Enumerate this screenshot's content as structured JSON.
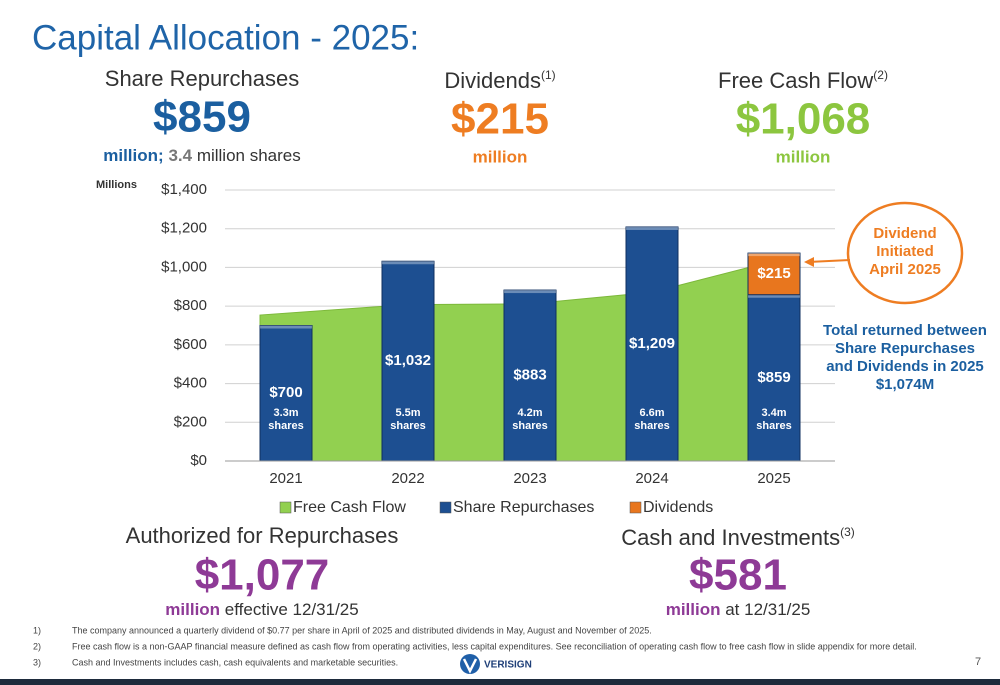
{
  "header": {
    "title": "Capital Allocation - 2025:"
  },
  "stats": {
    "repurchases": {
      "label": "Share Repurchases",
      "value": "$859",
      "unit": "million;",
      "shares": "3.4",
      "note": "million shares"
    },
    "dividends": {
      "label": "Dividends",
      "sup": "(1)",
      "value": "$215",
      "unit": "million"
    },
    "fcf": {
      "label": "Free Cash Flow",
      "sup": "(2)",
      "value": "$1,068",
      "unit": "million"
    },
    "authorized": {
      "label": "Authorized for Repurchases",
      "value": "$1,077",
      "unit": "million",
      "note": "effective 12/31/25"
    },
    "cash": {
      "label": "Cash and Investments",
      "sup": "(3)",
      "value": "$581",
      "unit": "million",
      "note": "at 12/31/25"
    }
  },
  "chart_data": {
    "type": "bar",
    "y_label": "Millions",
    "categories": [
      "2021",
      "2022",
      "2023",
      "2024",
      "2025"
    ],
    "series": [
      {
        "name": "Free Cash Flow",
        "color": "#92d050",
        "kind": "area",
        "values": [
          754,
          808,
          812,
          872,
          1068
        ]
      },
      {
        "name": "Share Repurchases",
        "color": "#1d4f91",
        "kind": "bar",
        "values": [
          700,
          1032,
          883,
          1209,
          859
        ],
        "value_labels": [
          "$700",
          "$1,032",
          "$883",
          "$1,209",
          "$859"
        ]
      },
      {
        "name": "Dividends",
        "color": "#e8761e",
        "kind": "bar",
        "values": [
          null,
          null,
          null,
          null,
          215
        ],
        "value_labels": [
          null,
          null,
          null,
          null,
          "$215"
        ]
      }
    ],
    "bar_notes": [
      [
        "3.3m",
        "shares"
      ],
      [
        "5.5m",
        "shares"
      ],
      [
        "4.2m",
        "shares"
      ],
      [
        "6.6m",
        "shares"
      ],
      [
        "3.4m",
        "shares"
      ]
    ],
    "ylim": [
      0,
      1400
    ],
    "yticks": [
      {
        "value": 0,
        "label": "$0"
      },
      {
        "value": 200,
        "label": "$200"
      },
      {
        "value": 400,
        "label": "$400"
      },
      {
        "value": 600,
        "label": "$600"
      },
      {
        "value": 800,
        "label": "$800"
      },
      {
        "value": 1000,
        "label": "$1,000"
      },
      {
        "value": 1200,
        "label": "$1,200"
      },
      {
        "value": 1400,
        "label": "$1,400"
      }
    ],
    "grid": true,
    "annotations": {
      "callout": [
        "Dividend",
        "Initiated",
        "April 2025"
      ],
      "total": [
        "Total returned between",
        "Share Repurchases",
        "and Dividends in 2025",
        "$1,074M"
      ]
    }
  },
  "footnotes": [
    {
      "num": "1)",
      "text": "The company announced a quarterly dividend of $0.77 per share in April of 2025 and distributed dividends in May, August and November of 2025."
    },
    {
      "num": "2)",
      "text": "Free cash flow is a non-GAAP financial measure defined as cash flow from operating activities, less capital expenditures. See reconciliation of operating cash flow to free cash flow in slide appendix for more detail."
    },
    {
      "num": "3)",
      "text": "Cash and Investments includes cash, cash equivalents and marketable securities."
    }
  ],
  "footer": {
    "logo": "VERISIGN",
    "page": "7"
  }
}
